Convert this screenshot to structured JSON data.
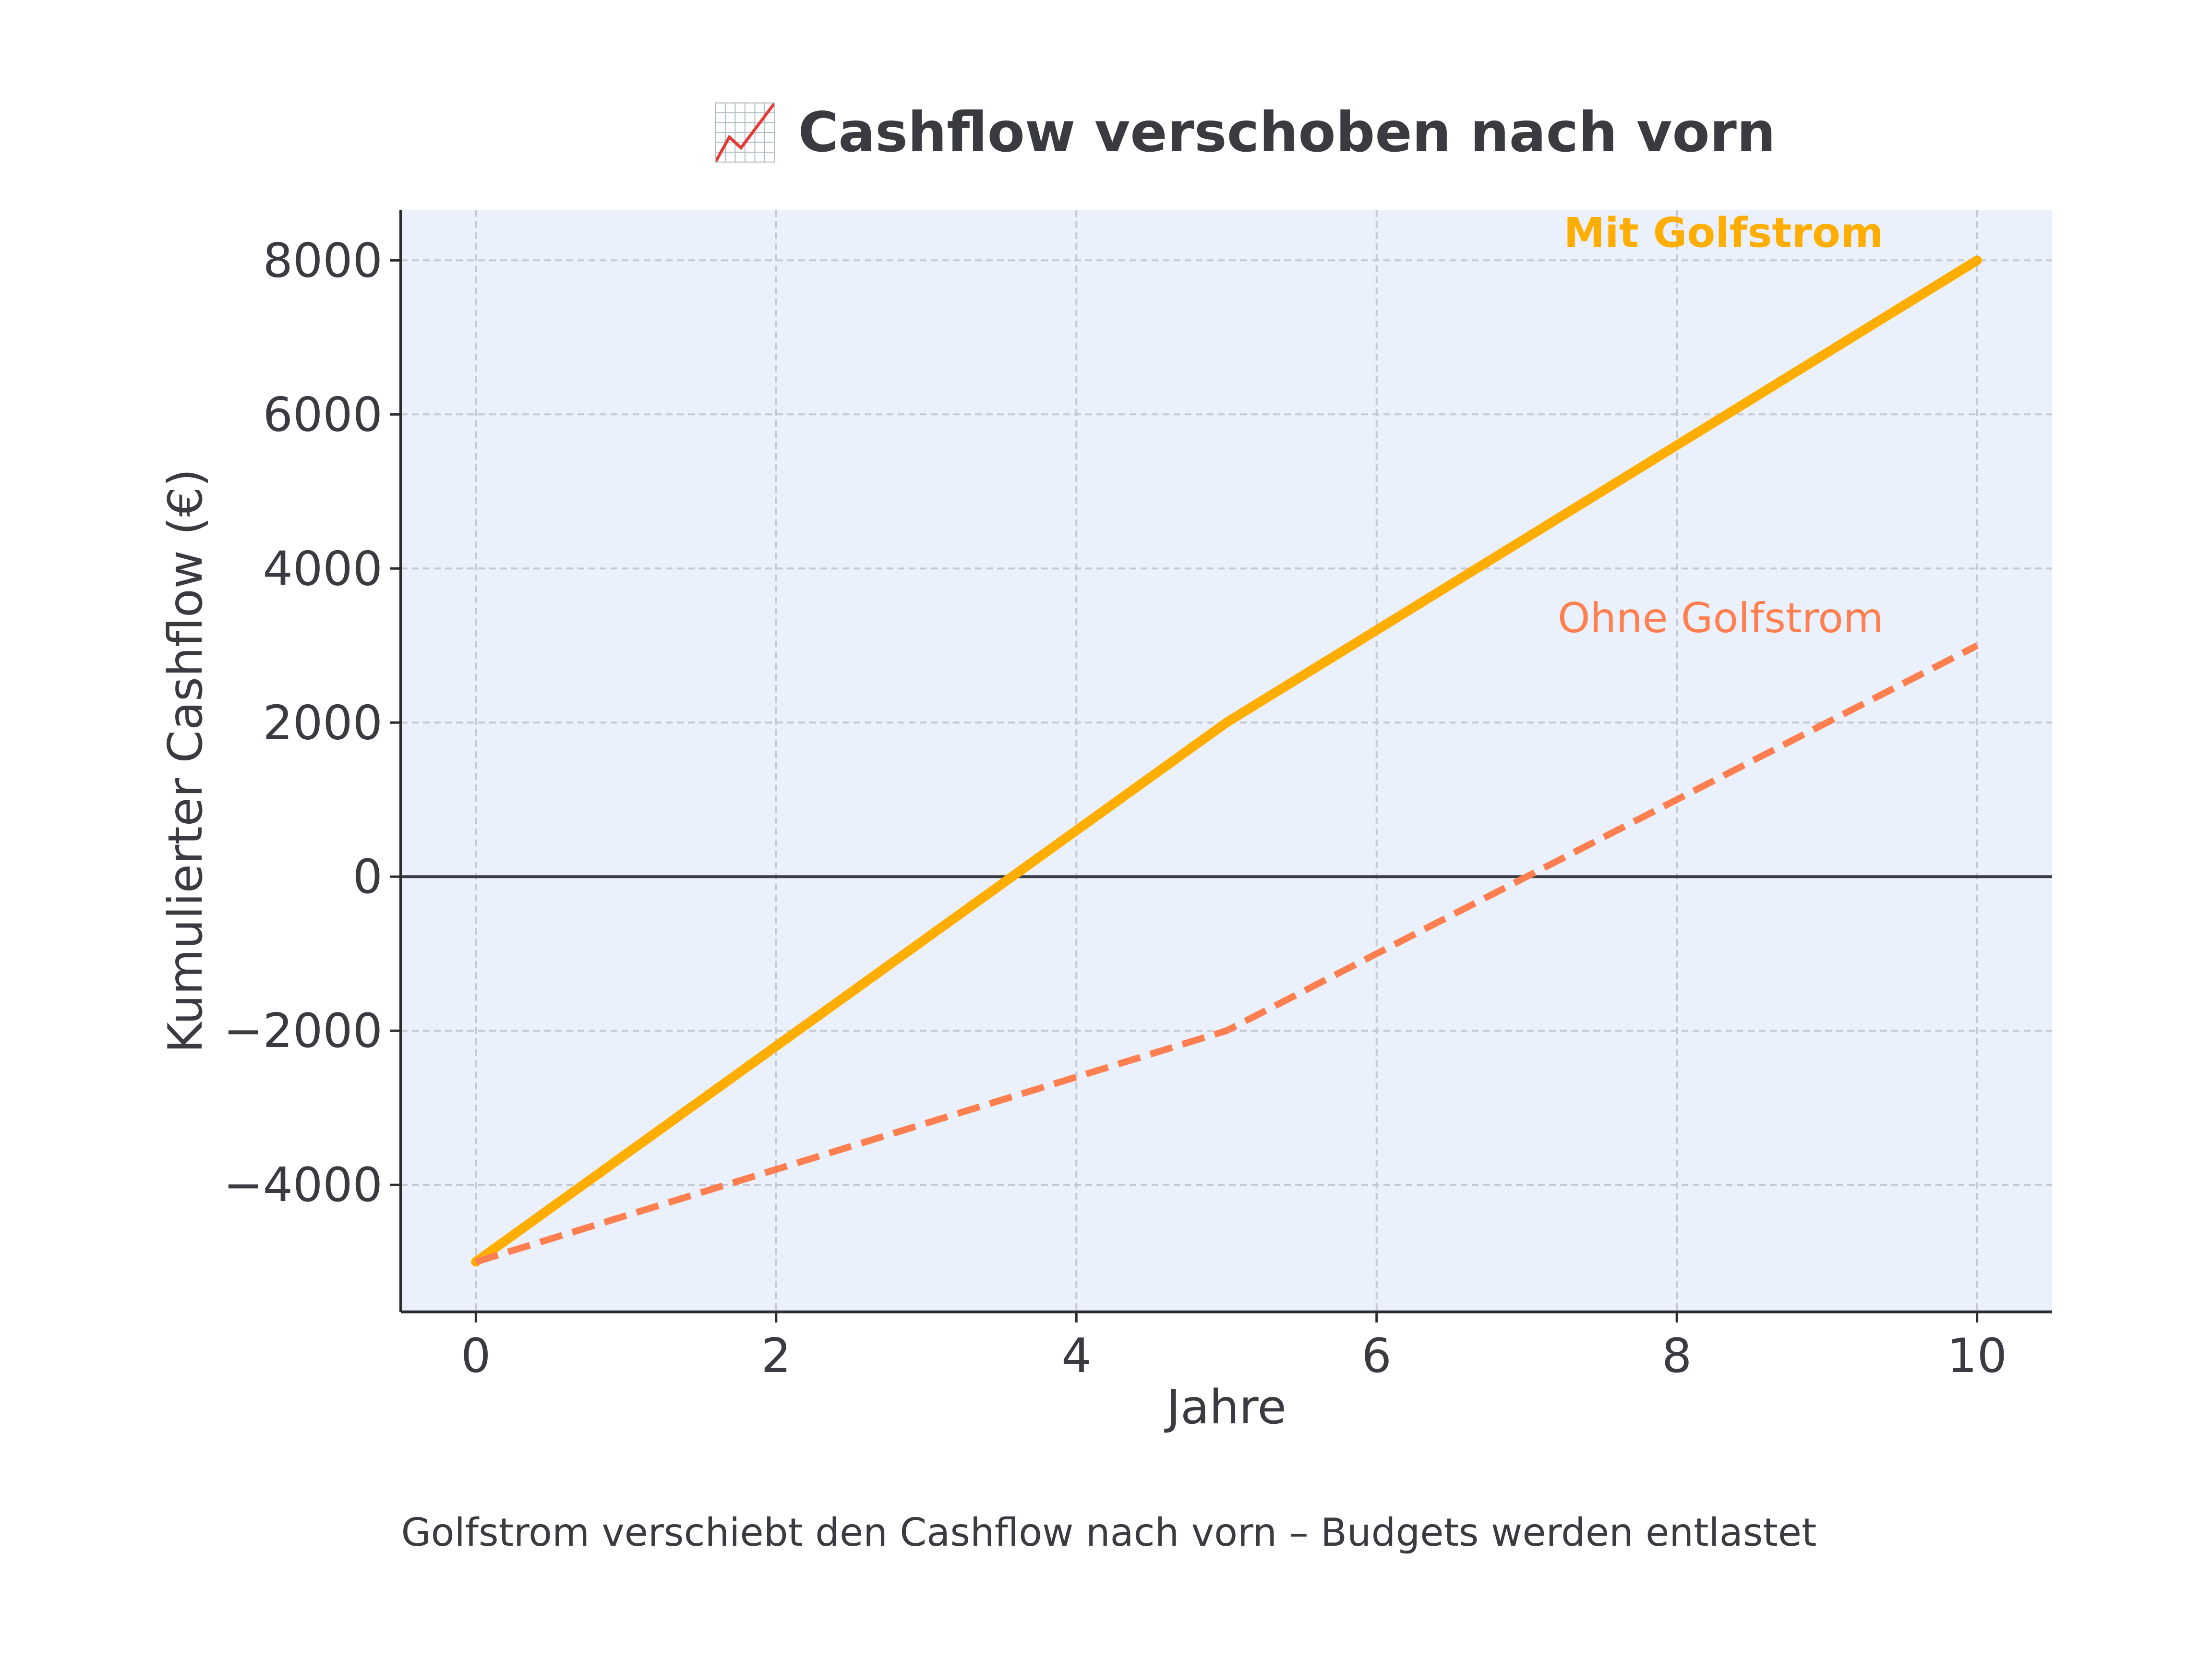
{
  "chart_data": {
    "type": "line",
    "title": "📈 Cashflow verschoben nach vorn",
    "xlabel": "Jahre",
    "ylabel": "Kumulierter Cashflow (€)",
    "caption": "Golfstrom verschiebt den Cashflow nach vorn – Budgets werden entlastet",
    "xlim": [
      -0.5,
      10.5
    ],
    "ylim": [
      -5650,
      8650
    ],
    "xticks": [
      0,
      2,
      4,
      6,
      8,
      10
    ],
    "yticks": [
      -4000,
      -2000,
      0,
      2000,
      4000,
      6000,
      8000
    ],
    "xtick_labels": [
      "0",
      "2",
      "4",
      "6",
      "8",
      "10"
    ],
    "ytick_labels": [
      "−4000",
      "−2000",
      "0",
      "2000",
      "4000",
      "6000",
      "8000"
    ],
    "grid": true,
    "zero_line": true,
    "series": [
      {
        "name": "Mit Golfstrom",
        "style": "solid",
        "color": "#FFAE00",
        "x": [
          0,
          5,
          10
        ],
        "values": [
          -5000,
          2000,
          8000
        ]
      },
      {
        "name": "Ohne Golfstrom",
        "style": "dashed",
        "color": "#FF7F50",
        "x": [
          0,
          2,
          5,
          8,
          10
        ],
        "values": [
          -5000,
          -3800,
          -2000,
          1000,
          3000
        ]
      }
    ],
    "colors": {
      "plot_background": "#EBF1FC",
      "grid": "#C5C8D0",
      "axis": "#2B2C30",
      "text": "#3A3B40"
    }
  }
}
